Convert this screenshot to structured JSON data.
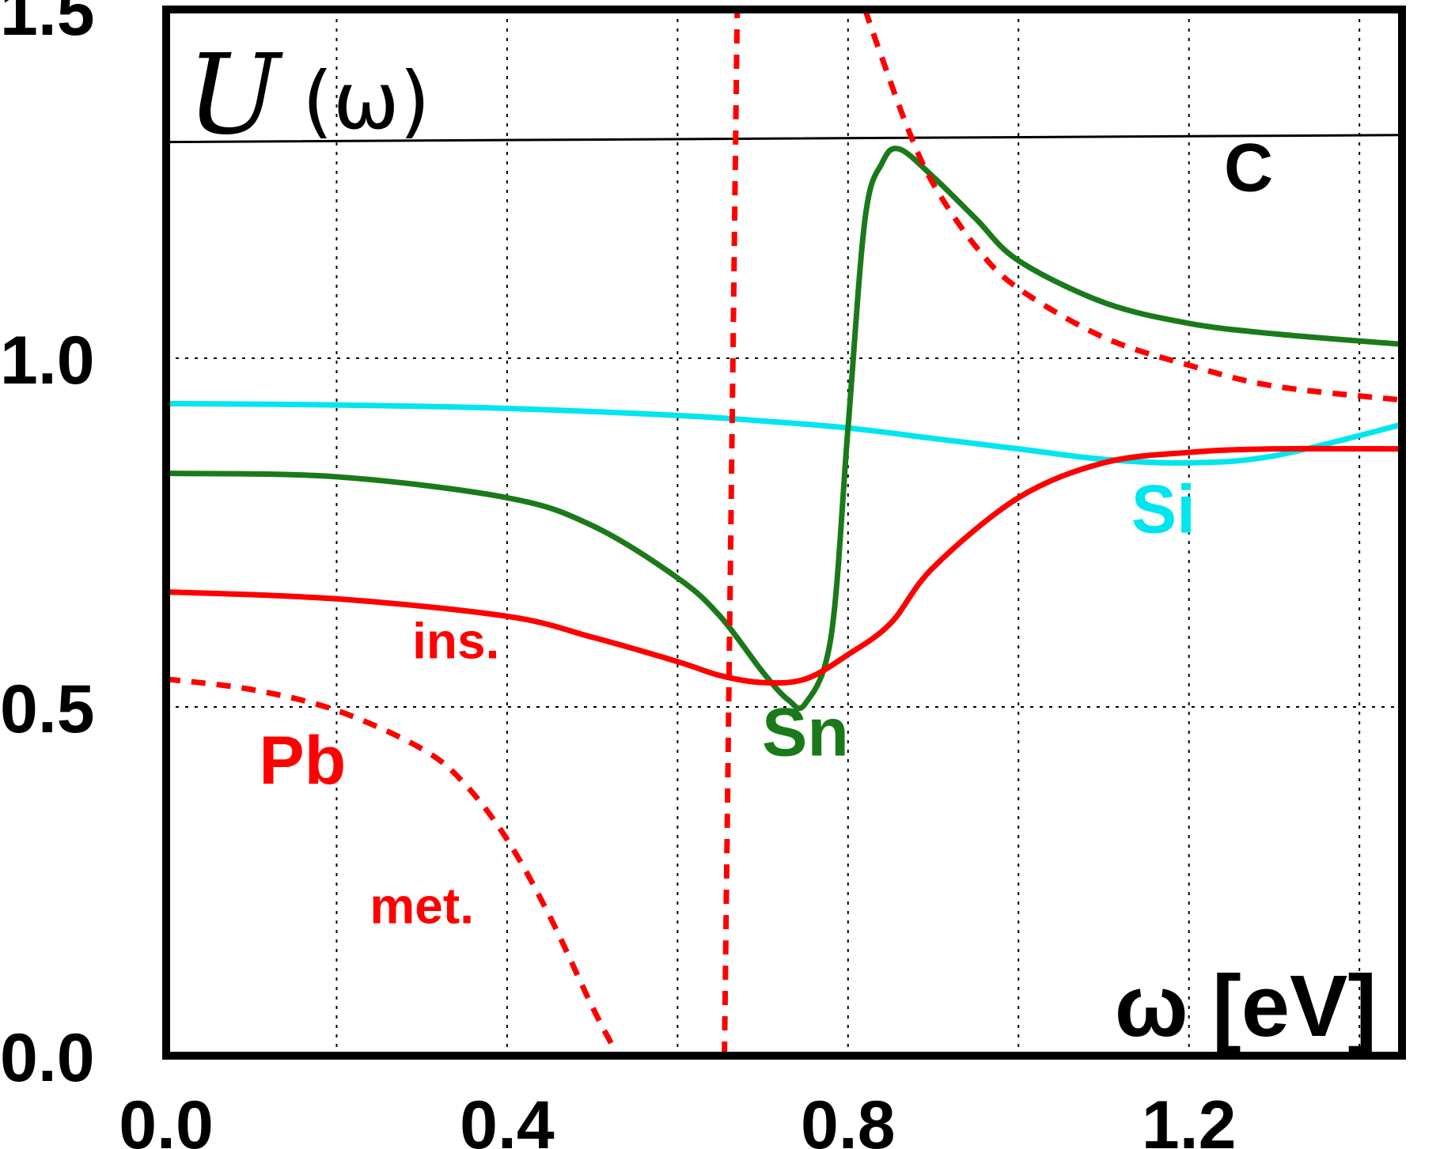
{
  "chart_data": {
    "type": "line",
    "title": "",
    "ylabel_symbol": "U",
    "ylabel_arg": "(ω)",
    "xlabel": "ω [eV]",
    "xlim": [
      0.0,
      1.45
    ],
    "ylim": [
      0.0,
      1.5
    ],
    "x_ticks": [
      "0.0",
      "0.4",
      "0.8",
      "1.2"
    ],
    "x_tick_values": [
      0.0,
      0.4,
      0.8,
      1.2
    ],
    "y_ticks": [
      "0.0",
      "0.5",
      "1.0",
      "1.5"
    ],
    "y_tick_values": [
      0.0,
      0.5,
      1.0,
      1.5
    ],
    "x_grid": [
      0.2,
      0.4,
      0.6,
      0.8,
      1.0,
      1.2,
      1.4
    ],
    "y_grid": [
      0.5,
      1.0
    ],
    "series": [
      {
        "name": "C",
        "label": "C",
        "color": "#000000",
        "style": "solid",
        "x": [
          0.0,
          1.45
        ],
        "y": [
          1.31,
          1.32
        ]
      },
      {
        "name": "Si",
        "label": "Si",
        "color": "#00e5ee",
        "style": "solid",
        "x": [
          0.0,
          0.2,
          0.4,
          0.6,
          0.7,
          0.8,
          0.9,
          1.0,
          1.1,
          1.2,
          1.3,
          1.45
        ],
        "y": [
          0.935,
          0.933,
          0.928,
          0.918,
          0.91,
          0.9,
          0.885,
          0.87,
          0.855,
          0.85,
          0.86,
          0.905
        ]
      },
      {
        "name": "Sn",
        "label": "Sn",
        "color": "#1a7a1a",
        "style": "solid",
        "x": [
          0.0,
          0.2,
          0.4,
          0.5,
          0.6,
          0.65,
          0.7,
          0.73,
          0.75,
          0.78,
          0.8,
          0.82,
          0.84,
          0.86,
          0.9,
          0.95,
          1.0,
          1.1,
          1.2,
          1.3,
          1.45
        ],
        "y": [
          0.835,
          0.83,
          0.8,
          0.76,
          0.685,
          0.63,
          0.55,
          0.51,
          0.505,
          0.6,
          0.9,
          1.2,
          1.28,
          1.3,
          1.26,
          1.2,
          1.14,
          1.08,
          1.05,
          1.035,
          1.02
        ]
      },
      {
        "name": "Pb ins.",
        "label": "ins.",
        "color": "#ff0000",
        "style": "solid",
        "x": [
          0.0,
          0.2,
          0.4,
          0.5,
          0.6,
          0.65,
          0.7,
          0.75,
          0.8,
          0.85,
          0.9,
          1.0,
          1.1,
          1.2,
          1.3,
          1.45
        ],
        "y": [
          0.665,
          0.655,
          0.63,
          0.6,
          0.565,
          0.545,
          0.535,
          0.54,
          0.575,
          0.62,
          0.7,
          0.8,
          0.85,
          0.865,
          0.87,
          0.87
        ]
      },
      {
        "name": "Pb met. (low)",
        "label": "met.",
        "color": "#ff0000",
        "style": "dashed",
        "x": [
          0.0,
          0.1,
          0.2,
          0.3,
          0.35,
          0.4,
          0.45,
          0.5,
          0.53
        ],
        "y": [
          0.54,
          0.525,
          0.495,
          0.44,
          0.39,
          0.31,
          0.2,
          0.07,
          0.0
        ]
      },
      {
        "name": "Pb met. (pole)",
        "label": "",
        "color": "#ff0000",
        "style": "dashed",
        "x": [
          0.655,
          0.66,
          0.665,
          0.67
        ],
        "y": [
          0.0,
          0.5,
          1.0,
          1.5
        ]
      },
      {
        "name": "Pb met. (high)",
        "label": "",
        "color": "#ff0000",
        "style": "dashed",
        "x": [
          0.82,
          0.84,
          0.87,
          0.9,
          0.95,
          1.0,
          1.1,
          1.2,
          1.3,
          1.45
        ],
        "y": [
          1.5,
          1.43,
          1.33,
          1.25,
          1.16,
          1.1,
          1.03,
          0.99,
          0.96,
          0.94
        ]
      }
    ],
    "annotations": [
      {
        "text": "C",
        "color": "#000000",
        "x": 1.27,
        "y": 1.24
      },
      {
        "text": "Si",
        "color": "#00e5ee",
        "x": 1.17,
        "y": 0.75
      },
      {
        "text": "Sn",
        "color": "#1a7a1a",
        "x": 0.75,
        "y": 0.43
      },
      {
        "text": "ins.",
        "color": "#ff0000",
        "x": 0.34,
        "y": 0.57
      },
      {
        "text": "Pb",
        "color": "#ff0000",
        "x": 0.16,
        "y": 0.39
      },
      {
        "text": "met.",
        "color": "#ff0000",
        "x": 0.3,
        "y": 0.19
      }
    ]
  }
}
